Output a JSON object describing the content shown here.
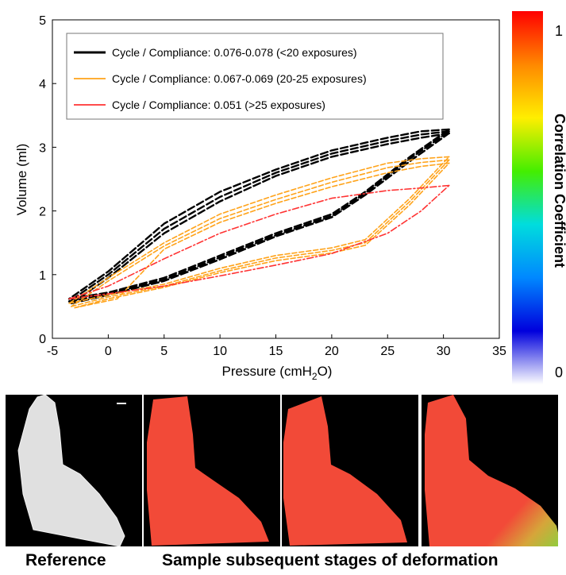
{
  "chart_data": {
    "type": "line",
    "xlabel_main": "Pressure (cmH",
    "xlabel_sub": "2",
    "xlabel_end": "O)",
    "ylabel": "Volume (ml)",
    "xlim": [
      -5,
      35
    ],
    "ylim": [
      0,
      5
    ],
    "xticks": [
      -5,
      0,
      5,
      10,
      15,
      20,
      25,
      30,
      35
    ],
    "yticks": [
      0,
      1,
      2,
      3,
      4,
      5
    ],
    "grid": false,
    "legend_position": "top-left",
    "series": [
      {
        "name": "Cycle / Compliance: 0.076-0.078 (<20 exposures)",
        "color": "#000000",
        "dash": "9,4",
        "width": 2.4,
        "loops": [
          {
            "inflation": [
              [
                -3.5,
                0.62
              ],
              [
                0,
                0.72
              ],
              [
                5,
                0.95
              ],
              [
                10,
                1.3
              ],
              [
                15,
                1.65
              ],
              [
                20,
                1.95
              ],
              [
                23,
                2.3
              ],
              [
                27,
                2.85
              ],
              [
                30.5,
                3.28
              ]
            ],
            "deflation": [
              [
                30.5,
                3.28
              ],
              [
                28,
                3.25
              ],
              [
                25,
                3.15
              ],
              [
                20,
                2.95
              ],
              [
                15,
                2.65
              ],
              [
                10,
                2.3
              ],
              [
                5,
                1.8
              ],
              [
                0,
                1.05
              ],
              [
                -3.5,
                0.62
              ]
            ]
          },
          {
            "inflation": [
              [
                -3.5,
                0.58
              ],
              [
                0,
                0.7
              ],
              [
                5,
                0.92
              ],
              [
                10,
                1.27
              ],
              [
                15,
                1.62
              ],
              [
                20,
                1.92
              ],
              [
                23,
                2.28
              ],
              [
                27,
                2.82
              ],
              [
                30.5,
                3.25
              ]
            ],
            "deflation": [
              [
                30.5,
                3.25
              ],
              [
                28,
                3.2
              ],
              [
                25,
                3.1
              ],
              [
                20,
                2.9
              ],
              [
                15,
                2.6
              ],
              [
                10,
                2.22
              ],
              [
                5,
                1.72
              ],
              [
                0,
                1.0
              ],
              [
                -3.5,
                0.58
              ]
            ]
          },
          {
            "inflation": [
              [
                -3.3,
                0.55
              ],
              [
                0,
                0.68
              ],
              [
                5,
                0.9
              ],
              [
                10,
                1.24
              ],
              [
                15,
                1.6
              ],
              [
                20,
                1.9
              ],
              [
                23,
                2.25
              ],
              [
                27,
                2.78
              ],
              [
                30.5,
                3.22
              ]
            ],
            "deflation": [
              [
                30.5,
                3.22
              ],
              [
                28,
                3.15
              ],
              [
                25,
                3.05
              ],
              [
                20,
                2.85
              ],
              [
                15,
                2.55
              ],
              [
                10,
                2.15
              ],
              [
                5,
                1.65
              ],
              [
                0,
                0.95
              ],
              [
                -3.3,
                0.55
              ]
            ]
          }
        ]
      },
      {
        "name": "Cycle / Compliance: 0.067-0.069 (20-25 exposures)",
        "color": "#ffa31a",
        "dash": "6,3",
        "width": 1.6,
        "loops": [
          {
            "inflation": [
              [
                -3.5,
                0.55
              ],
              [
                0,
                0.68
              ],
              [
                5,
                0.85
              ],
              [
                10,
                1.1
              ],
              [
                15,
                1.3
              ],
              [
                20,
                1.42
              ],
              [
                23,
                1.55
              ],
              [
                27,
                2.2
              ],
              [
                30.5,
                2.85
              ]
            ],
            "deflation": [
              [
                30.5,
                2.85
              ],
              [
                28,
                2.82
              ],
              [
                25,
                2.75
              ],
              [
                20,
                2.52
              ],
              [
                15,
                2.25
              ],
              [
                10,
                1.95
              ],
              [
                5,
                1.5
              ],
              [
                0,
                0.95
              ],
              [
                -3.5,
                0.55
              ]
            ]
          },
          {
            "inflation": [
              [
                -3.3,
                0.5
              ],
              [
                0,
                0.65
              ],
              [
                5,
                0.82
              ],
              [
                10,
                1.06
              ],
              [
                15,
                1.26
              ],
              [
                20,
                1.38
              ],
              [
                23,
                1.5
              ],
              [
                27,
                2.15
              ],
              [
                30.5,
                2.8
              ]
            ],
            "deflation": [
              [
                30.5,
                2.8
              ],
              [
                28,
                2.76
              ],
              [
                25,
                2.68
              ],
              [
                20,
                2.45
              ],
              [
                15,
                2.18
              ],
              [
                10,
                1.88
              ],
              [
                5,
                1.45
              ],
              [
                0,
                0.9
              ],
              [
                -3.3,
                0.5
              ]
            ]
          },
          {
            "inflation": [
              [
                -3.0,
                0.48
              ],
              [
                0,
                0.62
              ],
              [
                5,
                0.8
              ],
              [
                10,
                1.03
              ],
              [
                15,
                1.22
              ],
              [
                20,
                1.34
              ],
              [
                23,
                1.46
              ],
              [
                27,
                2.1
              ],
              [
                30.5,
                2.75
              ]
            ],
            "deflation": [
              [
                30.5,
                2.75
              ],
              [
                28,
                2.7
              ],
              [
                25,
                2.6
              ],
              [
                20,
                2.38
              ],
              [
                15,
                2.12
              ],
              [
                10,
                1.82
              ],
              [
                5,
                1.4
              ],
              [
                0.8,
                0.62
              ],
              [
                -3.0,
                0.48
              ]
            ]
          }
        ]
      },
      {
        "name": "Cycle / Compliance: 0.051 (>25 exposures)",
        "color": "#ff3333",
        "dash": "8,3,2,3",
        "width": 1.6,
        "loops": [
          {
            "inflation": [
              [
                -3.5,
                0.62
              ],
              [
                0,
                0.7
              ],
              [
                5,
                0.82
              ],
              [
                10,
                0.98
              ],
              [
                15,
                1.15
              ],
              [
                20,
                1.33
              ],
              [
                25,
                1.65
              ],
              [
                28,
                2.0
              ],
              [
                30.5,
                2.4
              ]
            ],
            "deflation": [
              [
                30.5,
                2.4
              ],
              [
                28,
                2.36
              ],
              [
                25,
                2.32
              ],
              [
                20,
                2.2
              ],
              [
                15,
                1.95
              ],
              [
                10,
                1.65
              ],
              [
                5,
                1.25
              ],
              [
                0,
                0.82
              ],
              [
                -3.5,
                0.62
              ]
            ]
          }
        ]
      }
    ],
    "colorbar": {
      "label": "Correlation Coefficient",
      "max_label": "1",
      "min_label": "0",
      "stops": [
        "#ff0000",
        "#ff8800",
        "#ffee00",
        "#44ee00",
        "#00dddd",
        "#0088ff",
        "#0000dd",
        "#ffffff"
      ]
    }
  },
  "panels": {
    "reference_caption": "Reference",
    "stages_caption": "Sample subsequent stages of deformation"
  }
}
